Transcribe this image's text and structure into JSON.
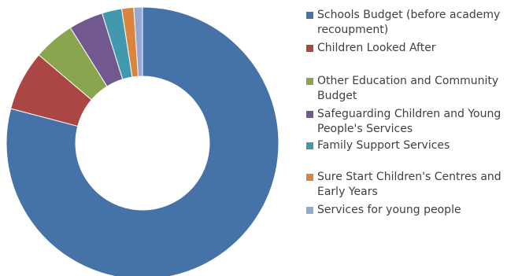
{
  "chart_data": {
    "type": "pie",
    "donut": true,
    "title": "",
    "legend_position": "right",
    "series": [
      {
        "name": "Schools Budget (before academy recoupment)",
        "value": 77.5,
        "color": "#4572A7"
      },
      {
        "name": "Children Looked After",
        "value": 7.0,
        "color": "#AA4643"
      },
      {
        "name": "Other Education and Community Budget",
        "value": 4.8,
        "color": "#89A54E"
      },
      {
        "name": "Safeguarding Children and Young People's Services",
        "value": 4.0,
        "color": "#71588F"
      },
      {
        "name": "Family Support Services",
        "value": 2.3,
        "color": "#4198AF"
      },
      {
        "name": "Sure Start Children's Centres and Early Years",
        "value": 1.4,
        "color": "#DB843D"
      },
      {
        "name": "Services for young people",
        "value": 1.0,
        "color": "#93A9CF"
      }
    ]
  }
}
